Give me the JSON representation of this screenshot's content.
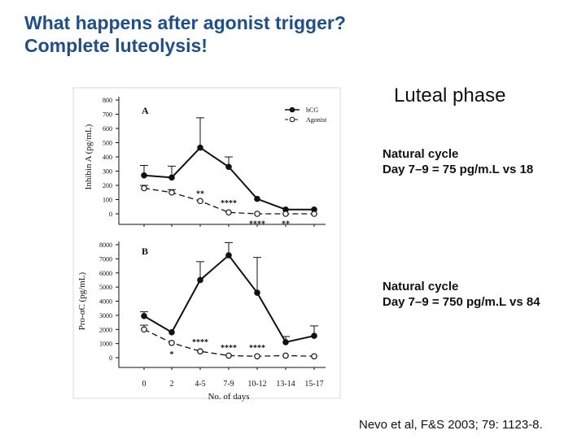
{
  "title": {
    "line1": "What happens after agonist trigger?",
    "line2": "Complete luteolysis!"
  },
  "phase_label": "Luteal phase",
  "notes": [
    {
      "line1": "Natural cycle",
      "line2": "Day 7–9 = 75 pg/m.L vs 18"
    },
    {
      "line1": "Natural cycle",
      "line2": "Day 7–9 = 750 pg/m.L vs 84"
    }
  ],
  "citation": "Nevo et al, F&S  2003; 79: 1123-8.",
  "colors": {
    "title": "#1f4e8c",
    "ink": "#111111"
  },
  "chart_data": [
    {
      "type": "line",
      "panel": "A",
      "ylabel": "Inhibin A (pg/mL)",
      "ylim": [
        0,
        800
      ],
      "yticks": [
        "0",
        "100",
        "200",
        "300",
        "400",
        "500",
        "600",
        "700",
        "800"
      ],
      "categories": [
        "0",
        "2",
        "4-5",
        "7-9",
        "10-12",
        "13-14",
        "15-17"
      ],
      "legend": {
        "position": "top-right",
        "entries": [
          "hCG",
          "Agonist"
        ]
      },
      "series": [
        {
          "name": "hCG",
          "marker": "filled",
          "values": [
            270,
            255,
            465,
            330,
            105,
            30,
            30
          ],
          "err": [
            70,
            80,
            210,
            70,
            0,
            0,
            0
          ]
        },
        {
          "name": "Agonist",
          "marker": "open",
          "values": [
            180,
            150,
            90,
            10,
            0,
            0,
            0
          ],
          "err": [
            20,
            20,
            0,
            0,
            0,
            0,
            0
          ]
        }
      ],
      "annotations": [
        {
          "text": "**",
          "x": 2,
          "value": 145
        },
        {
          "text": "****",
          "x": 3,
          "value": 80
        },
        {
          "text": "****",
          "x": 4,
          "value": -65
        },
        {
          "text": "**",
          "x": 5,
          "value": -65
        }
      ]
    },
    {
      "type": "line",
      "panel": "B",
      "ylabel": "Pro-αC (pg/mL)",
      "ylim": [
        0,
        8000
      ],
      "yticks": [
        "0",
        "1000",
        "2000",
        "3000",
        "4000",
        "5000",
        "6000",
        "7000",
        "8000"
      ],
      "xlabel": "No. of days",
      "categories": [
        "0",
        "2",
        "4-5",
        "7-9",
        "10-12",
        "13-14",
        "15-17"
      ],
      "series": [
        {
          "name": "hCG",
          "marker": "filled",
          "values": [
            2950,
            1800,
            5500,
            7250,
            4600,
            1100,
            1550
          ],
          "err": [
            300,
            0,
            1300,
            900,
            2500,
            400,
            700
          ]
        },
        {
          "name": "Agonist",
          "marker": "open",
          "values": [
            2000,
            1050,
            450,
            150,
            100,
            150,
            100
          ],
          "err": [
            300,
            0,
            0,
            0,
            0,
            0,
            0
          ]
        }
      ],
      "annotations": [
        {
          "text": "*",
          "x": 1,
          "value": 300
        },
        {
          "text": "****",
          "x": 2,
          "value": 1150
        },
        {
          "text": "****",
          "x": 3,
          "value": 750
        },
        {
          "text": "****",
          "x": 4,
          "value": 750
        }
      ]
    }
  ]
}
